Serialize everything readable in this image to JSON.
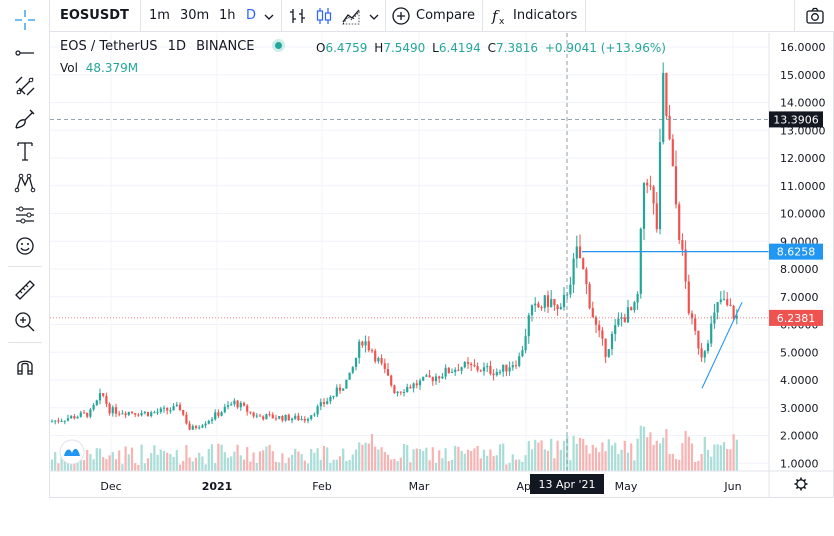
{
  "toolbar": {
    "symbol": "EOSUSDT",
    "intervals": [
      "1m",
      "30m",
      "1h",
      "D"
    ],
    "active_interval": "D",
    "compare_label": "Compare",
    "indicators_label": "Indicators",
    "icons": [
      "bar-style-icon",
      "candle-style-icon",
      "area-style-icon",
      "chevron-down-icon",
      "plus-circle-icon",
      "fx-icon",
      "camera-icon"
    ]
  },
  "left_toolbar": {
    "icons": [
      "crosshair-icon",
      "trend-line-icon",
      "fib-tool-icon",
      "brush-icon",
      "text-icon",
      "pattern-icon",
      "prediction-icon",
      "emoji-icon",
      "ruler-icon",
      "zoom-in-icon",
      "magnet-icon"
    ]
  },
  "legend": {
    "pair": "EOS / TetherUS",
    "interval": "1D",
    "exchange": "BINANCE",
    "o_label": "O",
    "o": "6.4759",
    "h_label": "H",
    "h": "7.5490",
    "l_label": "L",
    "l": "6.4194",
    "c_label": "C",
    "c": "7.3816",
    "change": "+0.9041 (+13.96%)",
    "vol_label": "Vol",
    "vol": "48.379M"
  },
  "price_axis": {
    "ticks": [
      "16.0000",
      "15.0000",
      "14.0000",
      "13.0000",
      "12.0000",
      "11.0000",
      "10.0000",
      "9.0000",
      "8.0000",
      "7.0000",
      "6.0000",
      "5.0000",
      "4.0000",
      "3.0000",
      "2.0000",
      "1.0000"
    ],
    "crosshair_label": "13.3906",
    "hline_label": "8.6258",
    "last_price_label": "6.2381"
  },
  "time_axis": {
    "labels": [
      "Dec",
      "2021",
      "Feb",
      "Mar",
      "Apr",
      "May",
      "Jun"
    ],
    "crosshair_label": "13 Apr '21"
  },
  "colors": {
    "up": "#26a69a",
    "down": "#ef5350",
    "accent": "#2962ff",
    "hline": "#2196f3",
    "crosshair_label_bg": "#131722",
    "volume_up": "#a9ddd7",
    "volume_down": "#f6b3b2"
  },
  "chart_data": {
    "type": "candlestick",
    "ylim": [
      1,
      16
    ],
    "approx_close_path": [
      {
        "x": "Nov 2020",
        "y": 2.5
      },
      {
        "x": "Dec 2020",
        "y": 2.8
      },
      {
        "x": "2021",
        "y": 2.6
      },
      {
        "x": "Feb 2021",
        "y": 2.9
      },
      {
        "x": "mid Feb 2021",
        "y": 5.4
      },
      {
        "x": "Mar 2021",
        "y": 3.6
      },
      {
        "x": "Apr 2021",
        "y": 4.6
      },
      {
        "x": "13 Apr 2021",
        "y": 8.6
      },
      {
        "x": "late Apr 2021",
        "y": 5.3
      },
      {
        "x": "May 2021",
        "y": 6.2
      },
      {
        "x": "mid May 2021",
        "y": 14.7
      },
      {
        "x": "late May 2021",
        "y": 4.6
      },
      {
        "x": "Jun 2021",
        "y": 7.38
      }
    ],
    "horizontal_line": 8.6258,
    "last_price": 6.2381
  }
}
